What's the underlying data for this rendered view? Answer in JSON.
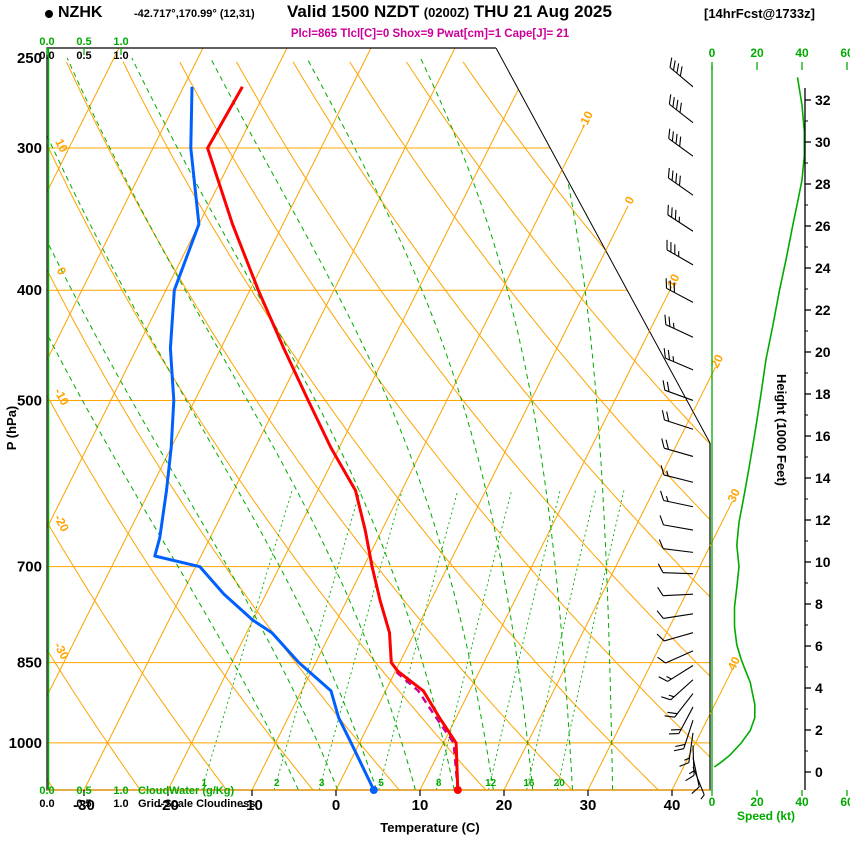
{
  "header": {
    "station": "NZHK",
    "coords": "-42.717°,170.99° (12,31)",
    "valid_main": "Valid 1500 NZDT",
    "valid_zulu": "(0200Z)",
    "valid_date": "THU 21 Aug 2025",
    "fcst": "[14hrFcst@1733z]",
    "params": "Plcl=865 Tlcl[C]=0 Shox=9 Pwat[cm]=1 Cape[J]= 21"
  },
  "axes": {
    "pressure_label": "P (hPa)",
    "pressure_ticks": [
      250,
      300,
      400,
      500,
      700,
      850,
      1000
    ],
    "temp_label": "Temperature (C)",
    "temp_ticks": [
      -30,
      -20,
      -10,
      0,
      10,
      20,
      30,
      40
    ],
    "height_label": "Height (1000 Feet)",
    "height_ticks": [
      0,
      2,
      4,
      6,
      8,
      10,
      12,
      14,
      16,
      18,
      20,
      22,
      24,
      26,
      28,
      30,
      32
    ],
    "speed_label": "Speed (kt)",
    "speed_ticks_top": [
      0,
      20,
      40,
      60
    ],
    "speed_ticks_bottom": [
      0,
      20,
      40,
      60
    ],
    "cloud_scale_ticks": [
      "0.0",
      "0.5",
      "1.0"
    ],
    "cloudwater_label": "CloudWater (g/Kg)",
    "cloudiness_label": "Grid-Scale Cloudiness"
  },
  "grid": {
    "isotherms_c": [
      -80,
      -70,
      -60,
      -50,
      -40,
      -30,
      -20,
      -10,
      0,
      10,
      20,
      30,
      40
    ],
    "isotherm_edge_labels": [
      -10,
      0,
      10,
      20,
      30,
      40
    ],
    "dry_adiabats_c": [
      -40,
      -30,
      -20,
      -10,
      0,
      10,
      20,
      30,
      40,
      50,
      60,
      70,
      80,
      90,
      100
    ],
    "dry_adiabat_edge_labels": [
      10,
      0,
      -10,
      -20,
      -30
    ],
    "moist_adiabats_c": [
      -10,
      -5,
      0,
      5,
      10,
      15,
      20,
      25,
      30
    ],
    "mixing_ratio_gkg": [
      1,
      2,
      3,
      5,
      8,
      12,
      16,
      20
    ]
  },
  "chart_data": {
    "type": "line",
    "title": "NZHK skew-T sounding valid 1500 NZDT (0200Z) THU 21 Aug 2025",
    "xlabel": "Temperature (C)",
    "ylabel": "P (hPa)",
    "x_range": [
      -35,
      45
    ],
    "pressure_range": [
      245,
      1100
    ],
    "surface_temp_c": 14.5,
    "surface_dewpoint_c": 4.5,
    "series": [
      {
        "name": "temperature_c",
        "color": "#ff0000",
        "points": [
          [
            1000,
            11.5
          ],
          [
            950,
            8
          ],
          [
            900,
            4.5
          ],
          [
            865,
            0.3
          ],
          [
            850,
            -1
          ],
          [
            800,
            -3
          ],
          [
            750,
            -6
          ],
          [
            700,
            -9
          ],
          [
            650,
            -12
          ],
          [
            600,
            -15.5
          ],
          [
            550,
            -21
          ],
          [
            500,
            -26.5
          ],
          [
            450,
            -32.5
          ],
          [
            400,
            -39
          ],
          [
            350,
            -46
          ],
          [
            300,
            -53.5
          ],
          [
            265,
            -53
          ]
        ]
      },
      {
        "name": "dewpoint_c",
        "color": "#0060ff",
        "points": [
          [
            1000,
            -1
          ],
          [
            950,
            -4
          ],
          [
            900,
            -6.5
          ],
          [
            850,
            -12
          ],
          [
            800,
            -17
          ],
          [
            780,
            -20
          ],
          [
            740,
            -25
          ],
          [
            700,
            -29.5
          ],
          [
            685,
            -35.5
          ],
          [
            660,
            -36
          ],
          [
            600,
            -38
          ],
          [
            550,
            -40
          ],
          [
            500,
            -42.5
          ],
          [
            450,
            -46
          ],
          [
            400,
            -49
          ],
          [
            350,
            -50
          ],
          [
            300,
            -55.5
          ],
          [
            265,
            -59
          ]
        ]
      },
      {
        "name": "parcel_c",
        "color": "#cc0099",
        "points": [
          [
            1000,
            11.2
          ],
          [
            950,
            7.6
          ],
          [
            900,
            3.9
          ],
          [
            865,
            0
          ]
        ]
      },
      {
        "name": "wind_speed_kt",
        "color": "#00ab00",
        "points": [
          [
            260,
            38
          ],
          [
            275,
            40
          ],
          [
            290,
            41
          ],
          [
            305,
            41
          ],
          [
            320,
            40
          ],
          [
            335,
            38
          ],
          [
            350,
            36
          ],
          [
            375,
            33
          ],
          [
            400,
            30
          ],
          [
            430,
            27
          ],
          [
            460,
            24
          ],
          [
            490,
            22
          ],
          [
            520,
            20
          ],
          [
            550,
            18
          ],
          [
            580,
            16
          ],
          [
            610,
            14
          ],
          [
            640,
            12
          ],
          [
            670,
            11
          ],
          [
            700,
            12
          ],
          [
            730,
            11
          ],
          [
            760,
            10
          ],
          [
            790,
            10
          ],
          [
            820,
            11
          ],
          [
            845,
            13
          ],
          [
            865,
            15
          ],
          [
            885,
            17
          ],
          [
            905,
            18
          ],
          [
            925,
            19
          ],
          [
            950,
            19
          ],
          [
            975,
            17
          ],
          [
            1000,
            13
          ],
          [
            1025,
            8
          ],
          [
            1040,
            4
          ],
          [
            1050,
            1
          ]
        ]
      },
      {
        "name": "wind_barbs_p_dir_kt",
        "points": [
          [
            265,
            310,
            38
          ],
          [
            285,
            308,
            40
          ],
          [
            305,
            306,
            41
          ],
          [
            330,
            305,
            39
          ],
          [
            355,
            303,
            36
          ],
          [
            380,
            300,
            33
          ],
          [
            410,
            298,
            30
          ],
          [
            440,
            295,
            27
          ],
          [
            470,
            293,
            24
          ],
          [
            500,
            290,
            22
          ],
          [
            530,
            288,
            20
          ],
          [
            560,
            286,
            18
          ],
          [
            590,
            284,
            16
          ],
          [
            620,
            282,
            14
          ],
          [
            650,
            280,
            12
          ],
          [
            680,
            277,
            11
          ],
          [
            710,
            272,
            12
          ],
          [
            740,
            267,
            11
          ],
          [
            770,
            261,
            10
          ],
          [
            800,
            254,
            11
          ],
          [
            830,
            246,
            12
          ],
          [
            855,
            238,
            14
          ],
          [
            880,
            228,
            16
          ],
          [
            905,
            218,
            18
          ],
          [
            930,
            208,
            19
          ],
          [
            955,
            198,
            18
          ],
          [
            980,
            188,
            16
          ],
          [
            1005,
            178,
            14
          ],
          [
            1030,
            168,
            10
          ],
          [
            1050,
            158,
            6
          ]
        ]
      }
    ]
  },
  "colors": {
    "orange": "#ffa400",
    "green": "#00ab00",
    "red": "#ff0000",
    "blue": "#0060ff",
    "magenta": "#cc0099",
    "black": "#000000"
  }
}
